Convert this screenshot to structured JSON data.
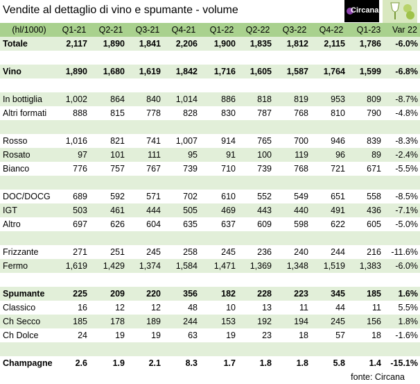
{
  "header": {
    "title": "Vendite al dettaglio di vino e spumante - volume",
    "logo": "Circana"
  },
  "table": {
    "columns": [
      "(hl/1000)",
      "Q1-21",
      "Q2-21",
      "Q3-21",
      "Q4-21",
      "Q1-22",
      "Q2-22",
      "Q3-22",
      "Q4-22",
      "Q1-23",
      "Var 22"
    ],
    "groups": [
      [
        {
          "cells": [
            "Totale",
            "2,117",
            "1,890",
            "1,841",
            "2,206",
            "1,900",
            "1,835",
            "1,812",
            "2,115",
            "1,786",
            "-6.0%"
          ],
          "bold": true
        }
      ],
      [
        {
          "cells": [
            "Vino",
            "1,890",
            "1,680",
            "1,619",
            "1,842",
            "1,716",
            "1,605",
            "1,587",
            "1,764",
            "1,599",
            "-6.8%"
          ],
          "bold": true
        }
      ],
      [
        {
          "cells": [
            "In bottiglia",
            "1,002",
            "864",
            "840",
            "1,014",
            "886",
            "818",
            "819",
            "953",
            "809",
            "-8.7%"
          ]
        },
        {
          "cells": [
            "Altri formati",
            "888",
            "815",
            "778",
            "828",
            "830",
            "787",
            "768",
            "810",
            "790",
            "-4.8%"
          ]
        }
      ],
      [
        {
          "cells": [
            "Rosso",
            "1,016",
            "821",
            "741",
            "1,007",
            "914",
            "765",
            "700",
            "946",
            "839",
            "-8.3%"
          ]
        },
        {
          "cells": [
            "Rosato",
            "97",
            "101",
            "111",
            "95",
            "91",
            "100",
            "119",
            "96",
            "89",
            "-2.4%"
          ]
        },
        {
          "cells": [
            "Bianco",
            "776",
            "757",
            "767",
            "739",
            "710",
            "739",
            "768",
            "721",
            "671",
            "-5.5%"
          ]
        }
      ],
      [
        {
          "cells": [
            "DOC/DOCG",
            "689",
            "592",
            "571",
            "702",
            "610",
            "552",
            "549",
            "651",
            "558",
            "-8.5%"
          ]
        },
        {
          "cells": [
            "IGT",
            "503",
            "461",
            "444",
            "505",
            "469",
            "443",
            "440",
            "491",
            "436",
            "-7.1%"
          ]
        },
        {
          "cells": [
            "Altro",
            "697",
            "626",
            "604",
            "635",
            "637",
            "609",
            "598",
            "622",
            "605",
            "-5.0%"
          ]
        }
      ],
      [
        {
          "cells": [
            "Frizzante",
            "271",
            "251",
            "245",
            "258",
            "245",
            "236",
            "240",
            "244",
            "216",
            "-11.6%"
          ]
        },
        {
          "cells": [
            "Fermo",
            "1,619",
            "1,429",
            "1,374",
            "1,584",
            "1,471",
            "1,369",
            "1,348",
            "1,519",
            "1,383",
            "-6.0%"
          ]
        }
      ],
      [
        {
          "cells": [
            "Spumante",
            "225",
            "209",
            "220",
            "356",
            "182",
            "228",
            "223",
            "345",
            "185",
            "1.6%"
          ],
          "bold": true
        },
        {
          "cells": [
            "Classico",
            "16",
            "12",
            "12",
            "48",
            "10",
            "13",
            "11",
            "44",
            "11",
            "5.5%"
          ]
        },
        {
          "cells": [
            "Ch Secco",
            "185",
            "178",
            "189",
            "244",
            "153",
            "192",
            "194",
            "245",
            "156",
            "1.8%"
          ]
        },
        {
          "cells": [
            "Ch Dolce",
            "24",
            "19",
            "19",
            "63",
            "19",
            "23",
            "18",
            "57",
            "18",
            "-1.6%"
          ]
        }
      ],
      [
        {
          "cells": [
            "Champagne",
            "2.6",
            "1.9",
            "2.1",
            "8.3",
            "1.7",
            "1.8",
            "1.8",
            "5.8",
            "1.4",
            "-15.1%"
          ],
          "bold": true
        }
      ]
    ]
  },
  "footer": {
    "source": "fonte: Circana"
  }
}
